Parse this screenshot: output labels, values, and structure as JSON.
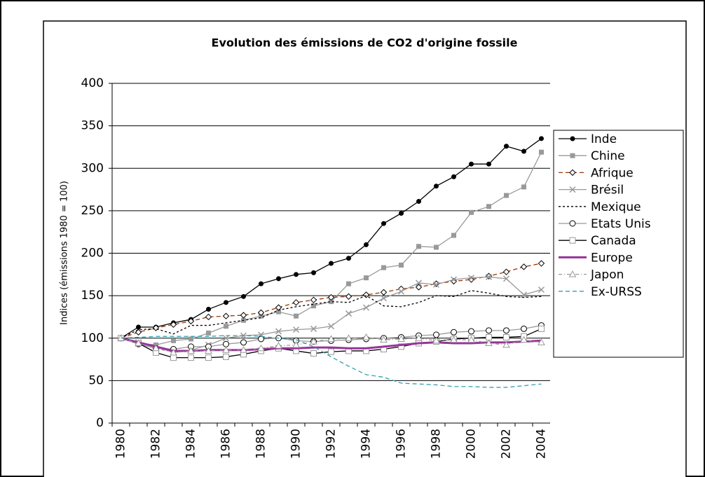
{
  "chart_data": {
    "type": "line",
    "title": "Evolution des émissions de CO2 d'origine fossile",
    "y_label": "Indices (émissions 1980 = 100)",
    "categories": [
      "1980",
      null,
      "1982",
      null,
      "1984",
      null,
      "1986",
      null,
      "1988",
      null,
      "1990",
      null,
      "1992",
      null,
      "1994",
      null,
      "1996",
      null,
      "1998",
      null,
      "2000",
      null,
      "2002",
      null,
      "2004"
    ],
    "ylim": [
      0,
      400
    ],
    "yticks": [
      0,
      50,
      100,
      150,
      200,
      250,
      300,
      350,
      400
    ],
    "grid": true,
    "legend": "right",
    "series": [
      {
        "name": "Inde",
        "color": "#000000",
        "marker": "dot",
        "dash": "solid",
        "values": [
          100,
          113,
          113,
          118,
          122,
          134,
          142,
          149,
          164,
          170,
          175,
          177,
          188,
          194,
          210,
          235,
          247,
          261,
          279,
          290,
          305,
          305,
          326,
          320,
          335
        ]
      },
      {
        "name": "Chine",
        "color": "#999999",
        "marker": "square",
        "dash": "solid",
        "values": [
          100,
          94,
          92,
          97,
          99,
          106,
          114,
          121,
          126,
          131,
          126,
          138,
          143,
          164,
          171,
          183,
          186,
          208,
          207,
          221,
          248,
          255,
          268,
          278,
          319
        ]
      },
      {
        "name": "Afrique",
        "color": "#993300",
        "marker": "diamond",
        "dash": "dashed",
        "values": [
          100,
          107,
          112,
          116,
          120,
          125,
          126,
          127,
          130,
          136,
          142,
          145,
          148,
          149,
          151,
          154,
          158,
          160,
          164,
          167,
          169,
          173,
          178,
          184,
          188
        ]
      },
      {
        "name": "Brésil",
        "color": "#999999",
        "marker": "cross",
        "dash": "solid",
        "values": [
          100,
          95,
          90,
          83,
          86,
          92,
          100,
          103,
          104,
          108,
          110,
          111,
          114,
          129,
          136,
          147,
          155,
          165,
          163,
          169,
          171,
          172,
          170,
          151,
          157
        ]
      },
      {
        "name": "Mexique",
        "color": "#000000",
        "marker": "none",
        "dash": "dotted",
        "values": [
          100,
          110,
          111,
          105,
          115,
          115,
          118,
          121,
          124,
          133,
          137,
          140,
          143,
          142,
          150,
          138,
          137,
          142,
          150,
          149,
          156,
          153,
          149,
          148,
          149
        ]
      },
      {
        "name": "Etats Unis",
        "color": "#999999",
        "marker": "circle",
        "dash": "solid",
        "values": [
          100,
          93,
          88,
          87,
          90,
          90,
          93,
          95,
          99,
          100,
          97,
          96,
          97,
          98,
          99,
          100,
          101,
          103,
          104,
          107,
          108,
          109,
          109,
          111,
          115
        ]
      },
      {
        "name": "Canada",
        "color": "#000000",
        "marker": "opensquare",
        "dash": "solid",
        "values": [
          100,
          94,
          83,
          77,
          77,
          77,
          78,
          81,
          85,
          88,
          85,
          82,
          84,
          85,
          85,
          87,
          90,
          94,
          96,
          99,
          100,
          101,
          101,
          102,
          111
        ]
      },
      {
        "name": "Europe",
        "color": "#993399",
        "marker": "none",
        "dash": "thick",
        "values": [
          100,
          95,
          90,
          85,
          85,
          86,
          86,
          86,
          87,
          88,
          88,
          89,
          89,
          88,
          88,
          90,
          92,
          94,
          95,
          94,
          94,
          95,
          95,
          96,
          97
        ]
      },
      {
        "name": "Japon",
        "color": "#999999",
        "marker": "triangle",
        "dash": "dashdot",
        "values": [
          100,
          94,
          88,
          83,
          85,
          85,
          86,
          86,
          88,
          91,
          92,
          96,
          99,
          100,
          101,
          98,
          99,
          100,
          97,
          98,
          98,
          94,
          92,
          98,
          95
        ]
      },
      {
        "name": "Ex-URSS",
        "color": "#33a0b0",
        "marker": "none",
        "dash": "dashed",
        "values": [
          100,
          101,
          102,
          102,
          102,
          102,
          103,
          103,
          102,
          100,
          98,
          90,
          78,
          67,
          57,
          54,
          47,
          46,
          45,
          43,
          43,
          42,
          42,
          44,
          46
        ]
      }
    ]
  }
}
